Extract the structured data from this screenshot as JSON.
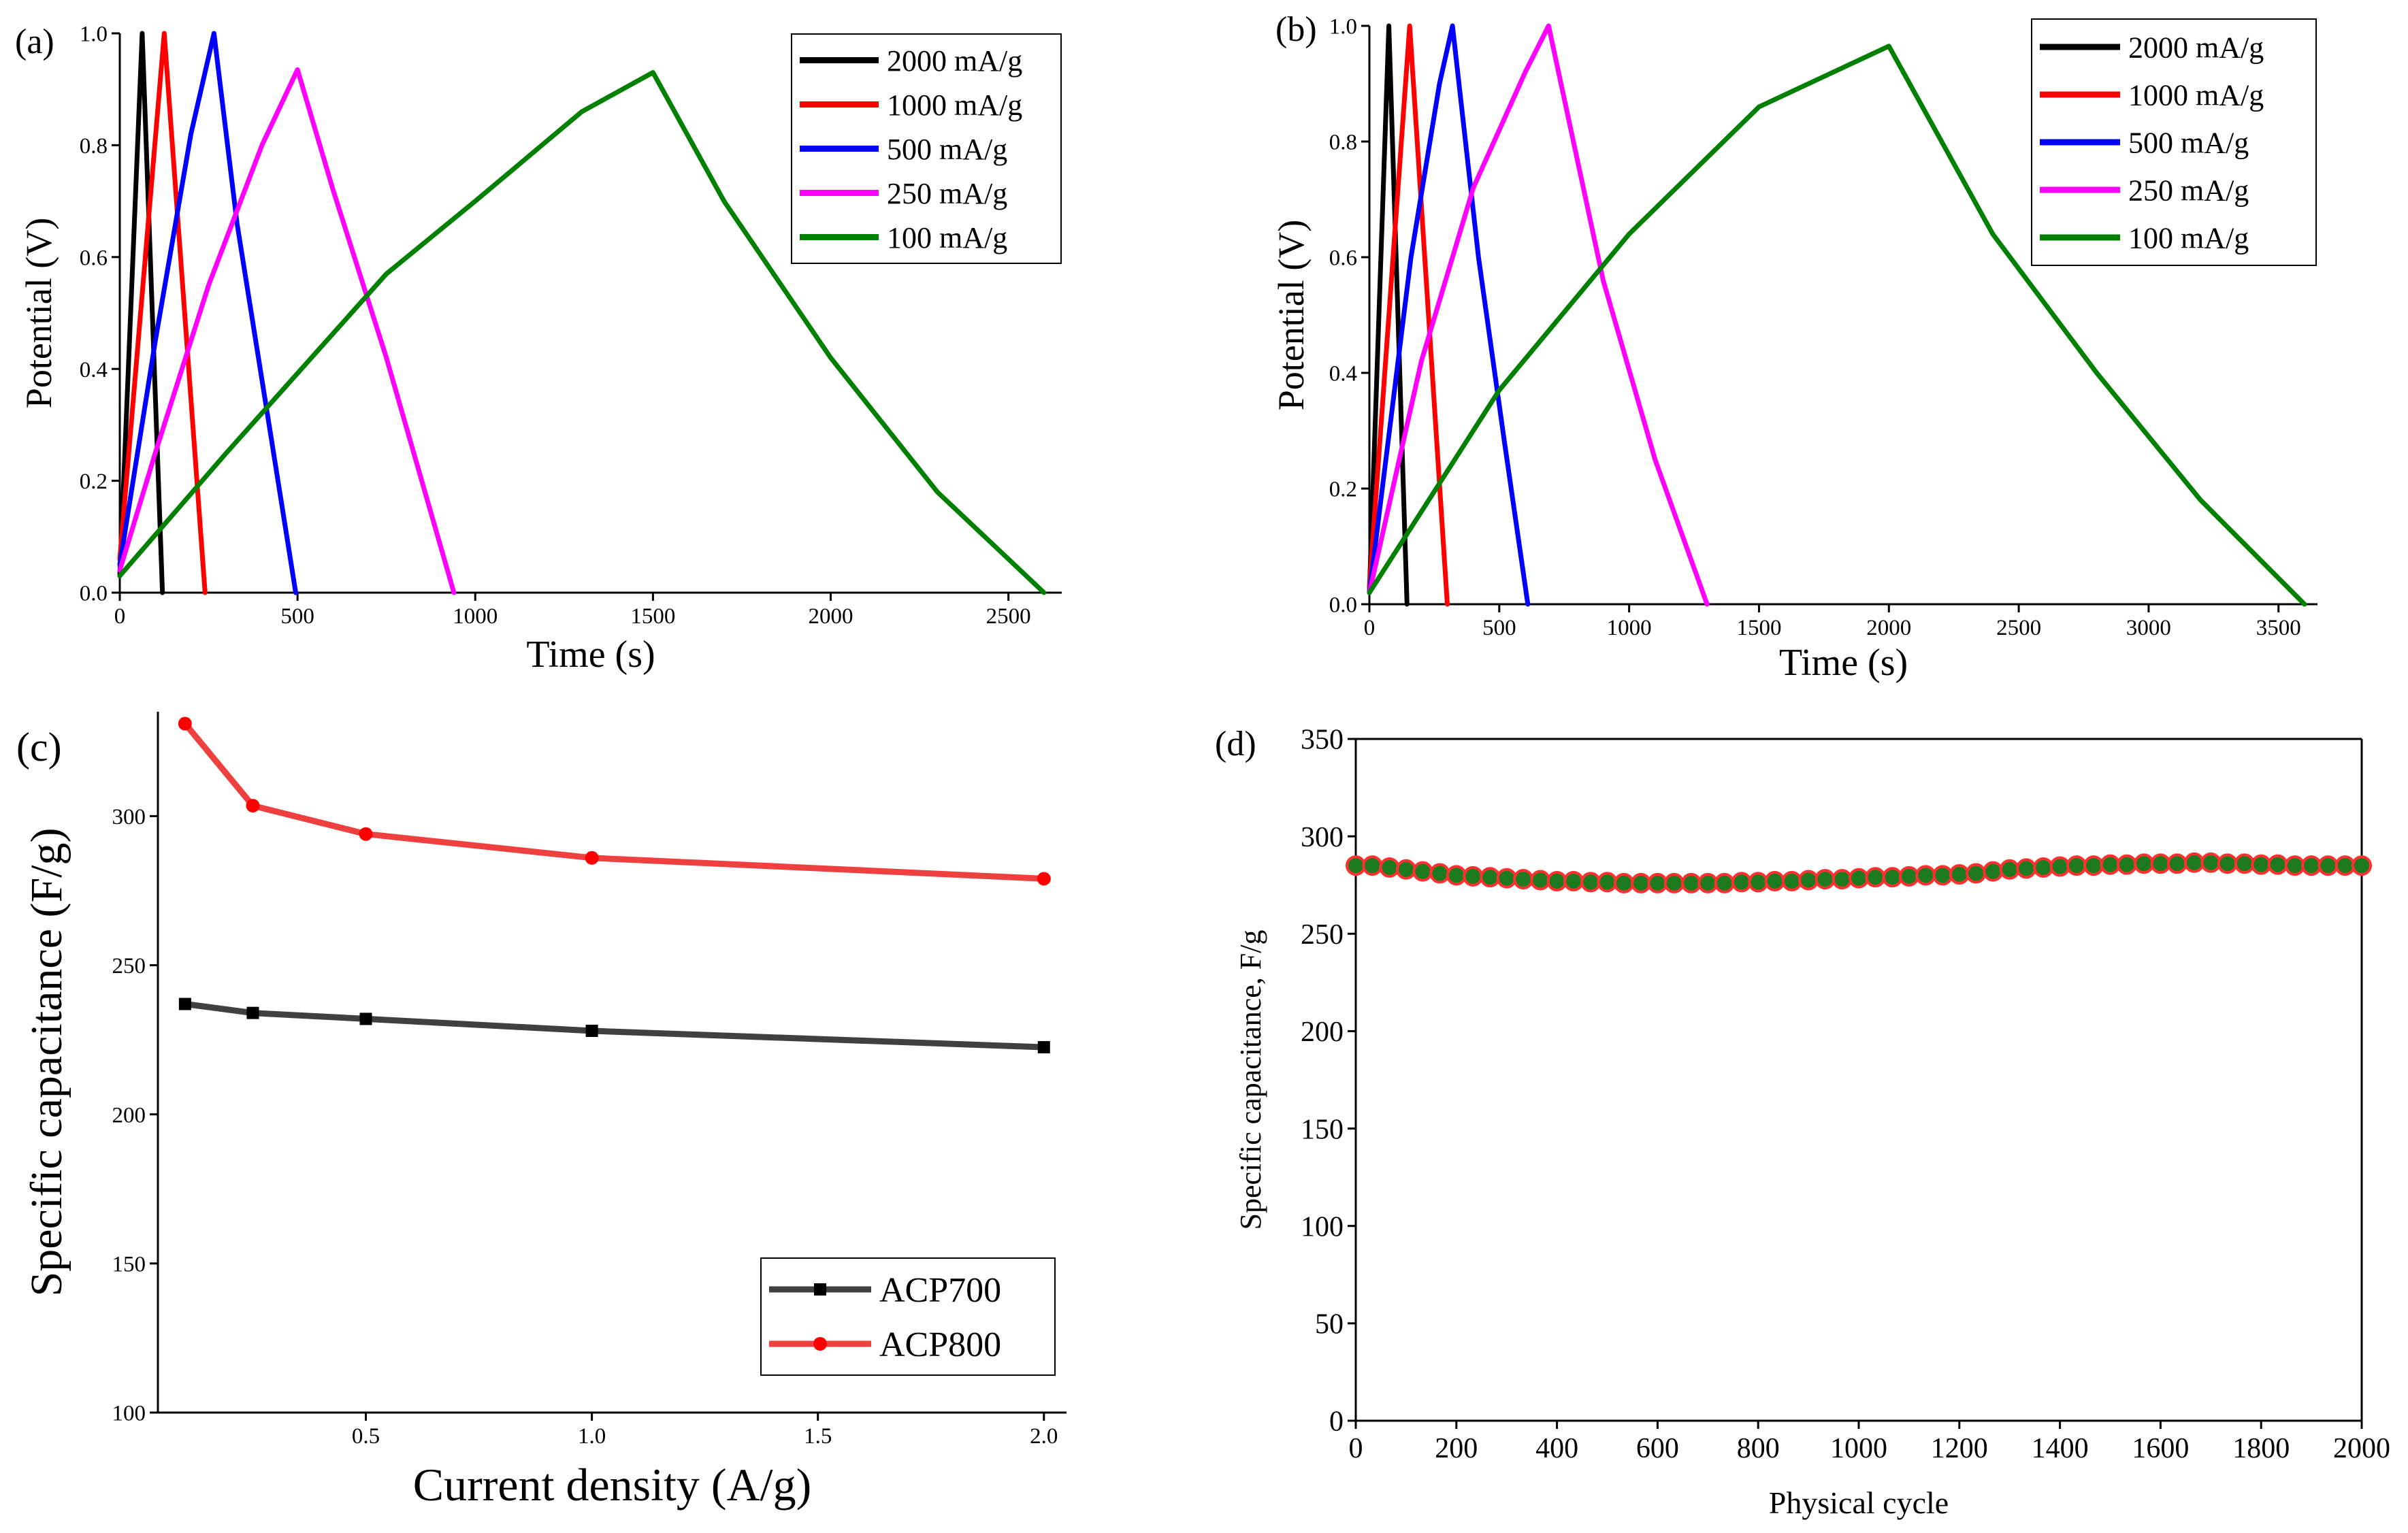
{
  "chart_data": [
    {
      "id": "a",
      "type": "line",
      "panel_label": "(a)",
      "title": "",
      "xlabel": "Time (s)",
      "ylabel": "Potential (V)",
      "xlim": [
        0,
        2650
      ],
      "ylim": [
        0,
        1.0
      ],
      "xticks": [
        0,
        500,
        1000,
        1500,
        2000,
        2500
      ],
      "yticks": [
        0.0,
        0.2,
        0.4,
        0.6,
        0.8,
        1.0
      ],
      "ytick_labels": [
        "0.0",
        "0.2",
        "0.4",
        "0.6",
        "0.8",
        "1.0"
      ],
      "legend_position": "top-right",
      "series": [
        {
          "name": "2000 mA/g",
          "color": "#000000",
          "x": [
            0,
            63,
            120
          ],
          "y": [
            0.03,
            1.0,
            0
          ]
        },
        {
          "name": "1000 mA/g",
          "color": "#ff0000",
          "x": [
            0,
            125,
            240
          ],
          "y": [
            0.06,
            1.0,
            0
          ]
        },
        {
          "name": "500 mA/g",
          "color": "#0000ff",
          "x": [
            0,
            100,
            200,
            265,
            330,
            420,
            495
          ],
          "y": [
            0.05,
            0.45,
            0.82,
            1.0,
            0.66,
            0.3,
            0
          ]
        },
        {
          "name": "250 mA/g",
          "color": "#ff00ff",
          "x": [
            0,
            100,
            250,
            400,
            500,
            600,
            750,
            940
          ],
          "y": [
            0.04,
            0.25,
            0.55,
            0.8,
            0.935,
            0.72,
            0.42,
            0
          ]
        },
        {
          "name": "100 mA/g",
          "color": "#008000",
          "x": [
            0,
            300,
            750,
            1000,
            1300,
            1500,
            1700,
            2000,
            2300,
            2600
          ],
          "y": [
            0.03,
            0.25,
            0.57,
            0.7,
            0.86,
            0.93,
            0.7,
            0.42,
            0.18,
            0
          ]
        }
      ]
    },
    {
      "id": "b",
      "type": "line",
      "panel_label": "(b)",
      "title": "",
      "xlabel": "Time (s)",
      "ylabel": "Potential (V)",
      "xlim": [
        0,
        3650
      ],
      "ylim": [
        0,
        1.0
      ],
      "xticks": [
        0,
        500,
        1000,
        1500,
        2000,
        2500,
        3000,
        3500
      ],
      "yticks": [
        0.0,
        0.2,
        0.4,
        0.6,
        0.8,
        1.0
      ],
      "ytick_labels": [
        "0.0",
        "0.2",
        "0.4",
        "0.6",
        "0.8",
        "1.0"
      ],
      "legend_position": "top-right",
      "series": [
        {
          "name": "2000 mA/g",
          "color": "#000000",
          "x": [
            0,
            75,
            145
          ],
          "y": [
            0.02,
            1.0,
            0
          ]
        },
        {
          "name": "1000 mA/g",
          "color": "#ff0000",
          "x": [
            0,
            155,
            300
          ],
          "y": [
            0.03,
            1.0,
            0
          ]
        },
        {
          "name": "500 mA/g",
          "color": "#0000ff",
          "x": [
            0,
            160,
            270,
            320,
            420,
            520,
            610
          ],
          "y": [
            0.02,
            0.6,
            0.9,
            1.0,
            0.6,
            0.28,
            0
          ]
        },
        {
          "name": "250 mA/g",
          "color": "#ff00ff",
          "x": [
            0,
            200,
            400,
            600,
            690,
            900,
            1100,
            1300
          ],
          "y": [
            0.02,
            0.42,
            0.72,
            0.92,
            1.0,
            0.56,
            0.25,
            0
          ]
        },
        {
          "name": "100 mA/g",
          "color": "#008000",
          "x": [
            0,
            500,
            1000,
            1500,
            2000,
            2400,
            2800,
            3200,
            3600
          ],
          "y": [
            0.02,
            0.37,
            0.64,
            0.86,
            0.965,
            0.64,
            0.4,
            0.18,
            0
          ]
        }
      ]
    },
    {
      "id": "c",
      "type": "line",
      "panel_label": "(c)",
      "title": "",
      "xlabel": "Current density (A/g)",
      "ylabel": "Specific capacitance (F/g)",
      "xlim": [
        0.04,
        2.05
      ],
      "ylim": [
        100,
        335
      ],
      "xticks": [
        0.5,
        1.0,
        1.5,
        2.0
      ],
      "xtick_labels": [
        "0.5",
        "1.0",
        "1.5",
        "2.0"
      ],
      "yticks": [
        100,
        150,
        200,
        250,
        300
      ],
      "legend_position": "bottom-right",
      "series": [
        {
          "name": "ACP700",
          "color": "#404040",
          "marker": "square",
          "x": [
            0.1,
            0.25,
            0.5,
            1.0,
            2.0
          ],
          "y": [
            237,
            234,
            232,
            228,
            222.5
          ]
        },
        {
          "name": "ACP800",
          "color": "#ef4040",
          "marker": "circle",
          "x": [
            0.1,
            0.25,
            0.5,
            1.0,
            2.0
          ],
          "y": [
            331,
            303.5,
            294,
            286,
            279
          ]
        }
      ]
    },
    {
      "id": "d",
      "type": "scatter",
      "panel_label": "(d)",
      "title": "",
      "xlabel": "Physical cycle",
      "ylabel": "Specific capacitance, F/g",
      "xlim": [
        0,
        2000
      ],
      "ylim": [
        0,
        350
      ],
      "xticks": [
        0,
        200,
        400,
        600,
        800,
        1000,
        1200,
        1400,
        1600,
        1800,
        2000
      ],
      "yticks": [
        0,
        50,
        100,
        150,
        200,
        250,
        300,
        350
      ],
      "series": [
        {
          "name": "Specific capacitance",
          "color": "#1e7a1e",
          "edgecolor": "#ff3030",
          "marker": "circle",
          "x": [
            0,
            33,
            67,
            100,
            133,
            167,
            200,
            233,
            267,
            300,
            333,
            367,
            400,
            433,
            467,
            500,
            533,
            567,
            600,
            633,
            667,
            700,
            733,
            767,
            800,
            833,
            867,
            900,
            933,
            967,
            1000,
            1033,
            1067,
            1100,
            1133,
            1167,
            1200,
            1233,
            1267,
            1300,
            1333,
            1367,
            1400,
            1433,
            1467,
            1500,
            1533,
            1567,
            1600,
            1633,
            1667,
            1700,
            1733,
            1767,
            1800,
            1833,
            1867,
            1900,
            1933,
            1967,
            2000
          ],
          "y": [
            285,
            285,
            284,
            283,
            282,
            281,
            280,
            279.5,
            279,
            278.5,
            278,
            277.5,
            277,
            277,
            276.5,
            276.5,
            276,
            276,
            276,
            276,
            276,
            276,
            276,
            276.5,
            276.5,
            277,
            277,
            277.5,
            278,
            278,
            278.5,
            279,
            279,
            279.5,
            280,
            280,
            280.5,
            281,
            282,
            283,
            283.5,
            284,
            284.5,
            285,
            285,
            285.5,
            285.5,
            286,
            286,
            286,
            286.5,
            286.5,
            286,
            286,
            285.5,
            285.5,
            285,
            285,
            285,
            285,
            285
          ]
        }
      ]
    }
  ]
}
